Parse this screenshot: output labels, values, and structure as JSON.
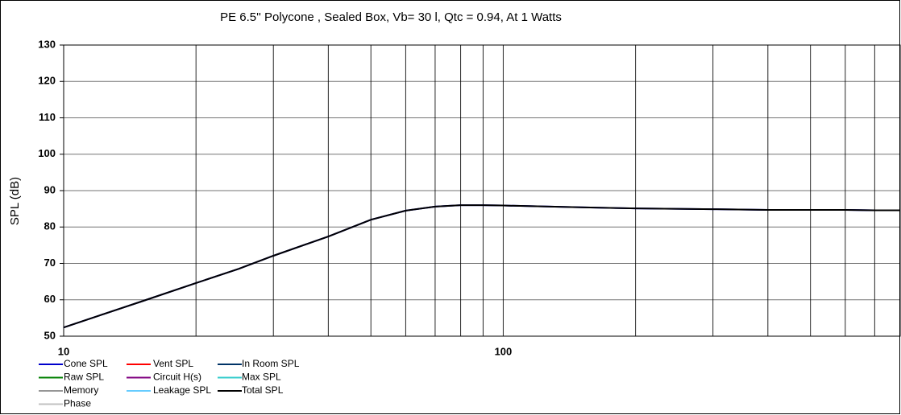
{
  "chart_data": {
    "type": "line",
    "title": "PE 6.5'' Polycone ,  Sealed Box, Vb= 30 l,  Qtc = 0.94,  At 1 Watts",
    "y_label": "SPL (dB)",
    "log_x": true,
    "xlim": [
      10,
      800
    ],
    "xticks": [
      10,
      100
    ],
    "x_minor_grid": [
      20,
      30,
      40,
      50,
      60,
      70,
      80,
      90,
      200,
      300,
      400,
      500,
      600,
      700
    ],
    "ylim": [
      50,
      130
    ],
    "yticks": [
      50,
      60,
      70,
      80,
      90,
      100,
      110,
      120,
      130
    ],
    "grid": true,
    "x": [
      10,
      12,
      15,
      20,
      25,
      30,
      40,
      50,
      60,
      70,
      80,
      90,
      100,
      150,
      200,
      300,
      400,
      500,
      600,
      700,
      800
    ],
    "series": [
      {
        "name": "Cone SPL",
        "color": "#0000cc",
        "values": [
          52.4,
          55.6,
          59.5,
          64.6,
          68.5,
          72.1,
          77.4,
          82.0,
          84.5,
          85.6,
          86.0,
          86.0,
          85.9,
          85.4,
          85.1,
          84.9,
          84.7,
          84.7,
          84.7,
          84.6,
          84.6
        ]
      },
      {
        "name": "Vent SPL",
        "color": "#ff0000"
      },
      {
        "name": "In Room SPL",
        "color": "#003366"
      },
      {
        "name": "Raw SPL",
        "color": "#008000"
      },
      {
        "name": "Circuit H(s)",
        "color": "#800080"
      },
      {
        "name": "Max SPL",
        "color": "#33cccc"
      },
      {
        "name": "Memory",
        "color": "#969696"
      },
      {
        "name": "Leakage SPL",
        "color": "#66ccff"
      },
      {
        "name": "Total SPL",
        "color": "#000000",
        "values": [
          52.4,
          55.6,
          59.5,
          64.6,
          68.5,
          72.1,
          77.4,
          82.0,
          84.5,
          85.6,
          86.0,
          86.0,
          85.9,
          85.4,
          85.1,
          84.9,
          84.7,
          84.7,
          84.7,
          84.6,
          84.6
        ]
      },
      {
        "name": "Phase",
        "color": "#c0c0c0"
      }
    ]
  }
}
